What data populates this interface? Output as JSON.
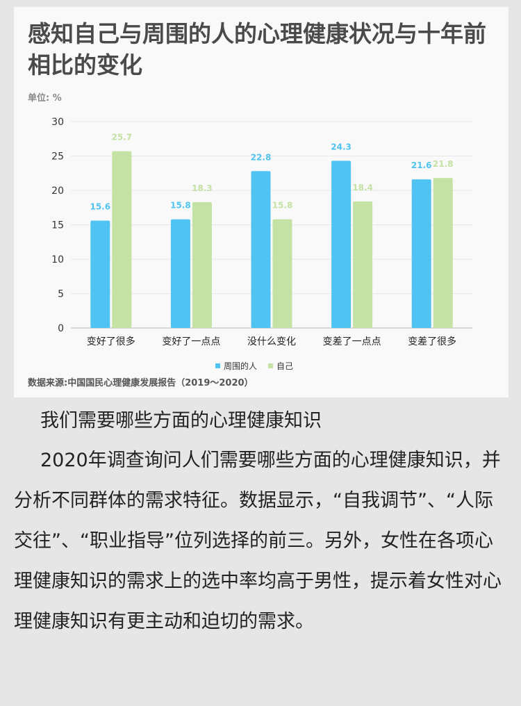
{
  "chart_data": {
    "type": "bar",
    "title": "感知自己与周围的人的心理健康状况与十年前相比的变化",
    "unit_label": "单位: %",
    "categories": [
      "变好了很多",
      "变好了一点点",
      "没什么变化",
      "变差了一点点",
      "变差了很多"
    ],
    "series": [
      {
        "name": "周围的人",
        "color": "#4fc3f1",
        "values": [
          15.6,
          15.8,
          22.8,
          24.3,
          21.6
        ]
      },
      {
        "name": "自己",
        "color": "#c3e2a3",
        "values": [
          25.7,
          18.3,
          15.8,
          18.4,
          21.8
        ]
      }
    ],
    "yticks": [
      0,
      5,
      10,
      15,
      20,
      25,
      30
    ],
    "ylim": [
      0,
      30
    ],
    "grid": true,
    "legend": "bottom-center",
    "source": "数据来源:中国国民心理健康发展报告（2019～2020）"
  },
  "article": {
    "heading": "我们需要哪些方面的心理健康知识",
    "body": "2020年调查询问人们需要哪些方面的心理健康知识，并分析不同群体的需求特征。数据显示，“自我调节”、“人际交往”、“职业指导”位列选择的前三。另外，女性在各项心理健康知识的需求上的选中率均高于男性，提示着女性对心理健康知识有更主动和迫切的需求。"
  }
}
